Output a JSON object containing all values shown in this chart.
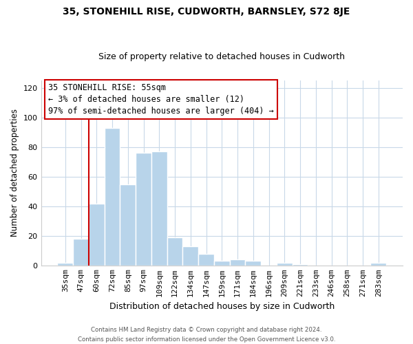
{
  "title": "35, STONEHILL RISE, CUDWORTH, BARNSLEY, S72 8JE",
  "subtitle": "Size of property relative to detached houses in Cudworth",
  "xlabel": "Distribution of detached houses by size in Cudworth",
  "ylabel": "Number of detached properties",
  "bar_labels": [
    "35sqm",
    "47sqm",
    "60sqm",
    "72sqm",
    "85sqm",
    "97sqm",
    "109sqm",
    "122sqm",
    "134sqm",
    "147sqm",
    "159sqm",
    "171sqm",
    "184sqm",
    "196sqm",
    "209sqm",
    "221sqm",
    "233sqm",
    "246sqm",
    "258sqm",
    "271sqm",
    "283sqm"
  ],
  "bar_values": [
    2,
    18,
    42,
    93,
    55,
    76,
    77,
    19,
    13,
    8,
    3,
    4,
    3,
    0,
    2,
    1,
    0,
    0,
    0,
    0,
    2
  ],
  "bar_color": "#b8d4ea",
  "bar_edge_color": "#9dbdd8",
  "vline_x": 1.5,
  "vline_color": "#cc0000",
  "ylim": [
    0,
    125
  ],
  "yticks": [
    0,
    20,
    40,
    60,
    80,
    100,
    120
  ],
  "annotation_title": "35 STONEHILL RISE: 55sqm",
  "annotation_line1": "← 3% of detached houses are smaller (12)",
  "annotation_line2": "97% of semi-detached houses are larger (404) →",
  "footer_line1": "Contains HM Land Registry data © Crown copyright and database right 2024.",
  "footer_line2": "Contains public sector information licensed under the Open Government Licence v3.0.",
  "background_color": "#ffffff",
  "grid_color": "#c8d8e8"
}
